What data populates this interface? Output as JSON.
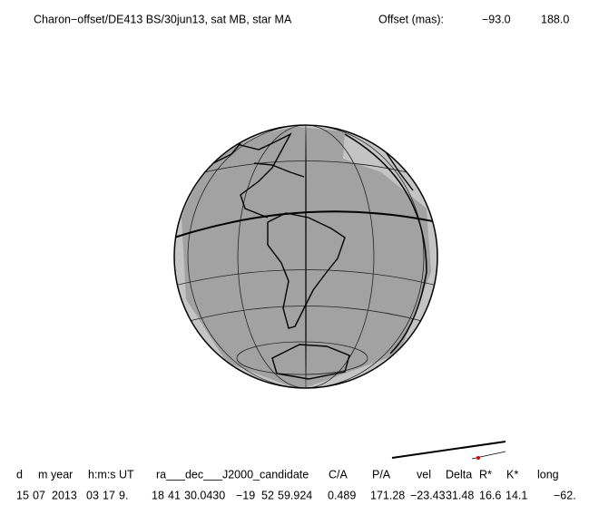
{
  "header": {
    "title": "Charon−offset/DE413 BS/30jun13, sat MB, star MA",
    "offset_label": "Offset (mas):",
    "offset_values": [
      "−93.0",
      "188.0"
    ]
  },
  "table": {
    "columns": [
      "d",
      "m",
      "year",
      "h:m:s UT",
      "ra___dec___J2000_candidate",
      "C/A",
      "P/A",
      "vel",
      "Delta",
      "R*",
      "K*",
      "long"
    ],
    "row": [
      "15",
      "07",
      "2013",
      "03",
      "17",
      "9.",
      "18",
      "41",
      "30.0430",
      "−19",
      "52",
      "59.924",
      "0.489",
      "171.28",
      "−23.43",
      "31.48",
      "16.6",
      "14.1",
      "−62."
    ]
  }
}
